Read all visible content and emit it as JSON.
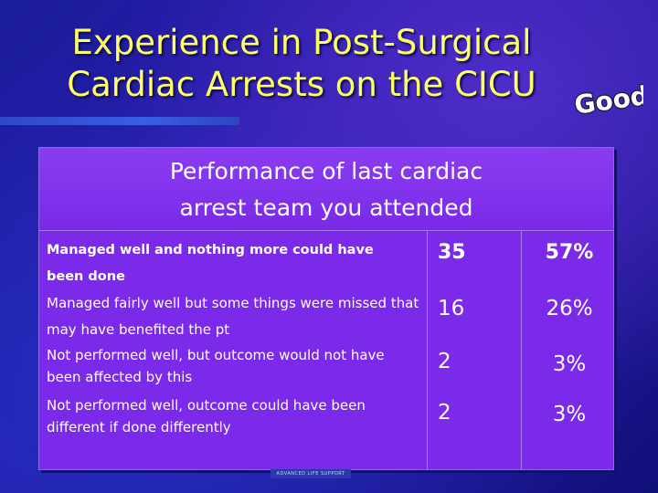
{
  "slide": {
    "title": "Experience in Post-Surgical Cardiac Arrests on the CICU",
    "badge_text": "Good",
    "footer_badge": "ADVANCED LIFE SUPPORT"
  },
  "table": {
    "header": "Performance of last cardiac arrest team you attended",
    "rows": [
      {
        "description": "Managed well and nothing more could have been done",
        "count": "35",
        "percent": "57%"
      },
      {
        "description": "Managed fairly well but some things were missed that may have benefited the pt",
        "count": "16",
        "percent": "26%"
      },
      {
        "description": "Not performed well, but outcome would not have been affected by this",
        "count": "2",
        "percent": "3%"
      },
      {
        "description": "Not performed well, outcome could have been different if done differently",
        "count": "2",
        "percent": "3%"
      }
    ]
  },
  "colors": {
    "title": "#ffff66",
    "table_fill": "#7a2ae8",
    "background": "#1f1796"
  }
}
